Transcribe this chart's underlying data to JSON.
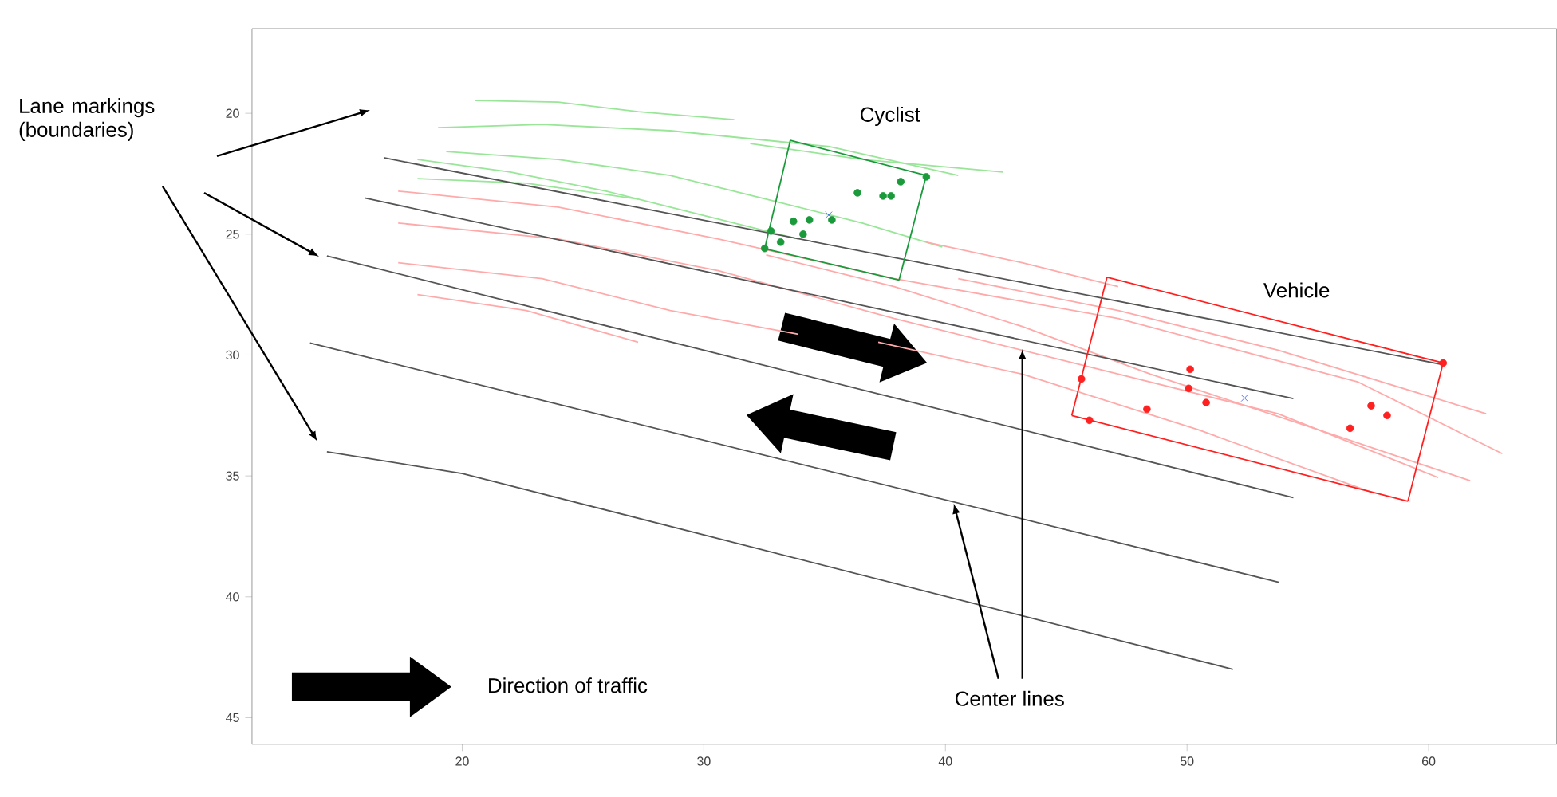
{
  "chart_data": {
    "type": "line",
    "xlim": [
      11.3,
      65.3
    ],
    "ylim": [
      46.1,
      16.5
    ],
    "xticks": [
      20,
      30,
      40,
      50,
      60
    ],
    "yticks": [
      20,
      25,
      30,
      35,
      40,
      45
    ],
    "grid": false,
    "annotations": [
      "Cyclist",
      "Vehicle",
      "Lane markings (boundaries)",
      "Center lines",
      "Direction of traffic"
    ],
    "series": [
      {
        "type": "line",
        "marker": "none",
        "color": "#99e699",
        "x": [
          20.53,
          23.97,
          27.28,
          31.26
        ],
        "values": [
          19.47,
          19.54,
          19.93,
          20.26
        ]
      },
      {
        "type": "line",
        "marker": "none",
        "color": "#99e699",
        "x": [
          19.0,
          23.31,
          28.61,
          35.23,
          40.53
        ],
        "values": [
          20.59,
          20.46,
          20.72,
          21.38,
          22.57
        ]
      },
      {
        "type": "line",
        "marker": "none",
        "color": "#99e699",
        "x": [
          19.34,
          23.97,
          28.61,
          32.58,
          36.56,
          39.87
        ],
        "values": [
          21.58,
          21.91,
          22.57,
          23.55,
          24.54,
          25.53
        ]
      },
      {
        "type": "line",
        "marker": "none",
        "color": "#99e699",
        "x": [
          18.15,
          21.99,
          25.96,
          29.93,
          33.91
        ],
        "values": [
          21.91,
          22.43,
          23.22,
          24.21,
          25.2
        ]
      },
      {
        "type": "line",
        "marker": "none",
        "color": "#99e699",
        "x": [
          18.15,
          22.65,
          27.28
        ],
        "values": [
          22.7,
          22.89,
          23.55
        ]
      },
      {
        "type": "line",
        "marker": "none",
        "color": "#99e699",
        "x": [
          31.92,
          36.56,
          42.38
        ],
        "values": [
          21.25,
          21.91,
          22.43
        ]
      },
      {
        "type": "line",
        "marker": "none",
        "color": "#ffaaaa",
        "x": [
          17.35,
          23.97,
          30.6,
          37.88,
          47.15,
          57.09,
          63.05
        ],
        "values": [
          23.22,
          23.88,
          25.2,
          26.84,
          28.49,
          31.12,
          34.08
        ]
      },
      {
        "type": "line",
        "marker": "none",
        "color": "#ffaaaa",
        "x": [
          17.35,
          23.97,
          30.6,
          37.88,
          45.83,
          53.77,
          60.4
        ],
        "values": [
          24.54,
          25.2,
          26.51,
          28.49,
          30.46,
          32.43,
          35.07
        ]
      },
      {
        "type": "line",
        "marker": "none",
        "color": "#ffaaaa",
        "x": [
          17.35,
          23.31,
          28.61,
          33.91
        ],
        "values": [
          26.18,
          26.84,
          28.16,
          29.14
        ]
      },
      {
        "type": "line",
        "marker": "none",
        "color": "#ffaaaa",
        "x": [
          18.15,
          22.65,
          27.28
        ],
        "values": [
          27.5,
          28.16,
          29.47
        ]
      },
      {
        "type": "line",
        "marker": "none",
        "color": "#ffaaaa",
        "x": [
          37.22,
          43.18,
          50.46,
          57.75
        ],
        "values": [
          29.47,
          30.79,
          33.09,
          35.72
        ]
      },
      {
        "type": "line",
        "marker": "none",
        "color": "#ffaaaa",
        "x": [
          40.53,
          47.15,
          53.77,
          62.38
        ],
        "values": [
          26.84,
          28.16,
          29.8,
          32.43
        ]
      },
      {
        "type": "line",
        "marker": "none",
        "color": "#ffaaaa",
        "x": [
          39.21,
          43.18,
          47.15
        ],
        "values": [
          25.33,
          26.18,
          27.17
        ]
      },
      {
        "type": "line",
        "marker": "none",
        "color": "#ffaaaa",
        "x": [
          32.58,
          37.88,
          43.18,
          48.48,
          56.42,
          61.72
        ],
        "values": [
          25.86,
          27.17,
          28.82,
          30.79,
          33.42,
          35.2
        ]
      },
      {
        "type": "line",
        "marker": "none",
        "color": "#555555",
        "x": [
          16.75,
          60.6
        ],
        "values": [
          21.84,
          30.4
        ]
      },
      {
        "type": "line",
        "marker": "none",
        "color": "#555555",
        "x": [
          15.96,
          54.4
        ],
        "values": [
          23.5,
          31.8
        ]
      },
      {
        "type": "line",
        "marker": "none",
        "color": "#555555",
        "x": [
          14.4,
          54.4
        ],
        "values": [
          25.9,
          35.9
        ]
      },
      {
        "type": "line",
        "marker": "none",
        "color": "#555555",
        "x": [
          13.7,
          53.8
        ],
        "values": [
          29.5,
          39.4
        ]
      },
      {
        "type": "line",
        "marker": "none",
        "color": "#555555",
        "x": [
          14.4,
          20.0,
          51.9
        ],
        "values": [
          34.0,
          34.9,
          43.0
        ]
      },
      {
        "marker": "none",
        "color": "#1a9a3a",
        "x": [
          33.58,
          39.21
        ],
        "values": [
          21.12,
          22.57
        ]
      },
      {
        "marker": "none",
        "color": "#1a9a3a",
        "x": [
          38.08,
          39.21
        ],
        "values": [
          26.9,
          22.57
        ]
      },
      {
        "marker": "none",
        "color": "#1a9a3a",
        "x": [
          32.52,
          38.08
        ],
        "values": [
          25.6,
          26.9
        ]
      },
      {
        "marker": "none",
        "color": "#1a9a3a",
        "x": [
          32.52,
          33.58
        ],
        "values": [
          25.6,
          21.12
        ]
      },
      {
        "marker": "none",
        "color": "#ff2020",
        "x": [
          46.69,
          60.6
        ],
        "values": [
          26.78,
          30.33
        ]
      },
      {
        "marker": "none",
        "color": "#ff2020",
        "x": [
          59.14,
          60.6
        ],
        "values": [
          36.05,
          30.33
        ]
      },
      {
        "marker": "none",
        "color": "#ff2020",
        "x": [
          45.23,
          59.14
        ],
        "values": [
          32.5,
          36.05
        ]
      },
      {
        "marker": "none",
        "color": "#ff2020",
        "x": [
          45.23,
          46.69
        ],
        "values": [
          32.5,
          26.78
        ]
      },
      {
        "type": "scatter",
        "marker": "circle",
        "color": "#1a9a3a",
        "x": [
          38.15,
          36.36,
          37.42,
          37.75,
          34.37,
          33.71,
          35.3,
          32.78,
          33.18,
          34.11,
          32.52,
          39.21
        ],
        "values": [
          22.83,
          23.29,
          23.42,
          23.42,
          24.41,
          24.47,
          24.41,
          24.87,
          25.33,
          25.0,
          25.59,
          22.63
        ]
      },
      {
        "type": "scatter",
        "marker": "circle",
        "color": "#ff2020",
        "x": [
          60.6,
          45.63,
          45.96,
          48.34,
          50.13,
          50.07,
          50.79,
          57.62,
          58.28,
          56.75
        ],
        "values": [
          30.33,
          30.99,
          32.7,
          32.24,
          30.59,
          31.38,
          31.97,
          32.1,
          32.5,
          33.03
        ]
      },
      {
        "type": "scatter",
        "marker": "cross",
        "color": "#3050ff",
        "x": [
          35.17,
          52.38
        ],
        "values": [
          24.21,
          31.78
        ]
      }
    ]
  }
}
